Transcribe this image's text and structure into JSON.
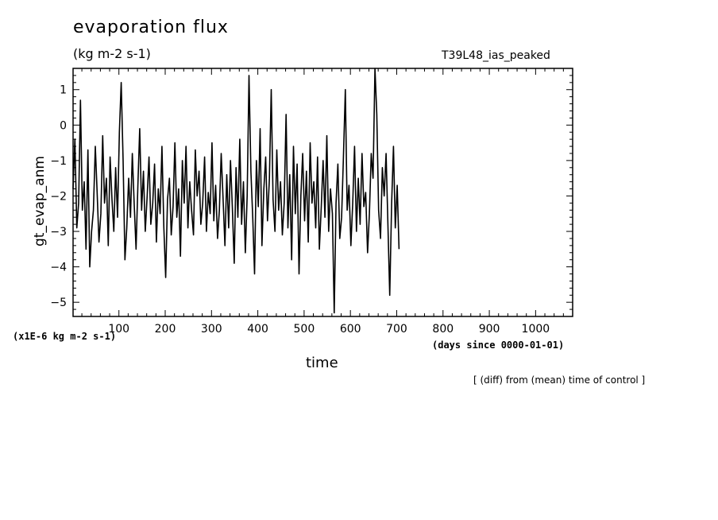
{
  "chart_data": {
    "type": "line",
    "title": "evaporation flux",
    "units": "(kg m-2 s-1)",
    "run_label": "T39L48_ias_peaked",
    "ylabel": "gt_evap_anm",
    "xlabel": "time",
    "y_units_note": "(x1E-6 kg m-2 s-1)",
    "x_units_note": "(days since 0000-01-01)",
    "footnote": "[ (diff) from (mean) time of control ]",
    "xlim": [
      1,
      1080
    ],
    "ylim": [
      -5.4,
      1.6
    ],
    "x_ticks": [
      100,
      200,
      300,
      400,
      500,
      600,
      700,
      800,
      900,
      1000
    ],
    "y_ticks": [
      1,
      0,
      -1,
      -2,
      -3,
      -4,
      -5
    ],
    "grid": false,
    "series": [
      {
        "color": "#000000",
        "x_start": 1,
        "x_step": 4,
        "values": [
          -1.8,
          -0.4,
          -2.9,
          -2.2,
          0.7,
          -2.4,
          -1.6,
          -3.5,
          -0.7,
          -4.0,
          -3.0,
          -2.4,
          -0.6,
          -1.9,
          -3.3,
          -2.5,
          -0.3,
          -2.2,
          -1.5,
          -3.4,
          -0.9,
          -2.1,
          -3.0,
          -1.2,
          -2.6,
          -0.2,
          1.2,
          -1.0,
          -3.8,
          -2.9,
          -1.5,
          -2.6,
          -0.8,
          -2.2,
          -3.5,
          -1.7,
          -0.1,
          -2.4,
          -1.3,
          -3.0,
          -2.0,
          -0.9,
          -2.8,
          -2.2,
          -1.1,
          -3.3,
          -1.8,
          -2.5,
          -0.6,
          -2.9,
          -4.3,
          -2.1,
          -1.5,
          -3.1,
          -2.3,
          -0.5,
          -2.6,
          -1.8,
          -3.7,
          -1.0,
          -2.2,
          -0.6,
          -2.9,
          -1.6,
          -2.4,
          -3.1,
          -0.7,
          -2.0,
          -1.3,
          -2.8,
          -2.2,
          -0.9,
          -3.0,
          -1.9,
          -2.5,
          -0.5,
          -2.7,
          -1.7,
          -3.2,
          -2.4,
          -0.8,
          -2.1,
          -3.4,
          -1.4,
          -2.9,
          -1.0,
          -2.3,
          -3.9,
          -1.2,
          -2.6,
          -0.4,
          -2.8,
          -1.6,
          -3.6,
          -2.0,
          1.4,
          -1.3,
          -2.6,
          -4.2,
          -1.0,
          -2.3,
          -0.1,
          -3.4,
          -1.8,
          -0.9,
          -2.7,
          -1.5,
          1.0,
          -2.1,
          -3.0,
          -0.7,
          -2.4,
          -1.6,
          -3.1,
          -2.2,
          0.3,
          -2.9,
          -1.4,
          -3.8,
          -0.6,
          -2.5,
          -1.1,
          -4.2,
          -2.0,
          -0.8,
          -2.7,
          -1.3,
          -3.3,
          -0.5,
          -2.2,
          -1.6,
          -2.9,
          -0.9,
          -3.5,
          -2.3,
          -1.0,
          -2.6,
          -0.3,
          -3.0,
          -1.8,
          -2.5,
          -5.3,
          -2.2,
          -1.1,
          -3.2,
          -2.6,
          -0.9,
          1.0,
          -2.4,
          -1.7,
          -3.4,
          -2.2,
          -0.6,
          -3.0,
          -1.5,
          -2.8,
          -0.8,
          -2.3,
          -1.9,
          -3.6,
          -2.5,
          -0.8,
          -1.5,
          1.7,
          0.3,
          -2.4,
          -3.2,
          -1.2,
          -2.0,
          -0.8,
          -2.8,
          -4.8,
          -2.2,
          -0.6,
          -2.9,
          -1.7,
          -3.5
        ]
      }
    ]
  }
}
